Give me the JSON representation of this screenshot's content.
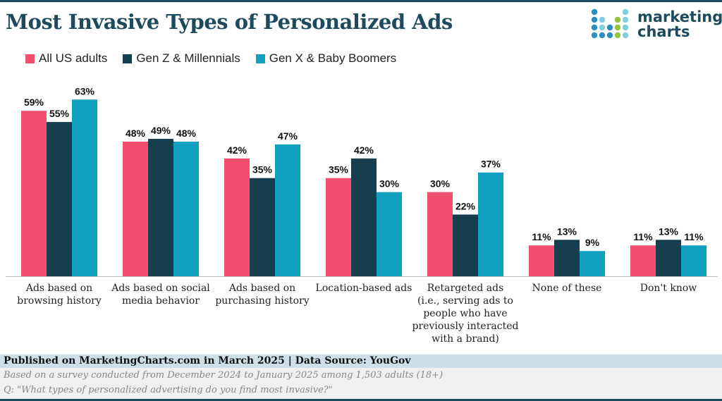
{
  "title": "Most Invasive Types of Personalized Ads",
  "logo": {
    "line1": "marketing",
    "line2": "charts"
  },
  "footer": {
    "published": "Published on MarketingCharts.com in March 2025 | Data Source: YouGov",
    "note": "Based on a survey conducted from December 2024 to January 2025 among 1,503 adults (18+)",
    "question": "Q: \"What types of personalized advertising do you find most invasive?\""
  },
  "chart_data": {
    "type": "bar",
    "title": "Most Invasive Types of Personalized Ads",
    "legend_position": "top-left",
    "grid": false,
    "ylim": [
      0,
      65
    ],
    "categories": [
      [
        "Ads based on",
        "browsing history"
      ],
      [
        "Ads based on social",
        "media behavior"
      ],
      [
        "Ads based on",
        "purchasing history"
      ],
      [
        "Location-based ads"
      ],
      [
        "Retargeted ads",
        "(i.e., serving ads to",
        "people who have",
        "previously interacted",
        "with a brand)"
      ],
      [
        "None of these"
      ],
      [
        "Don't know"
      ]
    ],
    "series": [
      {
        "name": "All US adults",
        "color": "#f0506e",
        "values": [
          59,
          48,
          42,
          35,
          30,
          11,
          11
        ]
      },
      {
        "name": "Gen Z & Millennials",
        "color": "#163e4f",
        "values": [
          55,
          49,
          35,
          42,
          22,
          13,
          13
        ]
      },
      {
        "name": "Gen X & Baby Boomers",
        "color": "#12a0c0",
        "values": [
          63,
          48,
          47,
          30,
          37,
          9,
          11
        ]
      }
    ]
  }
}
